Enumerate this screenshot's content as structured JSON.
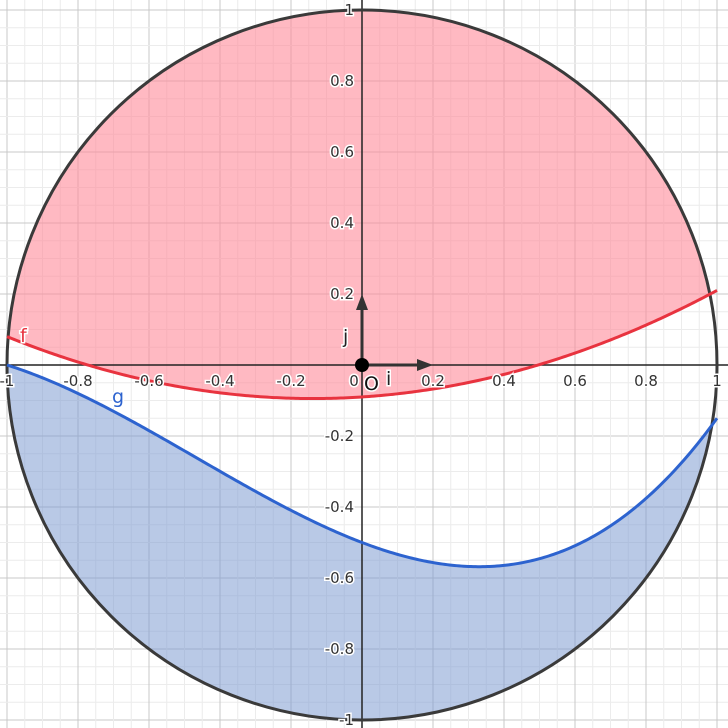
{
  "graph": {
    "x_ticks": [
      "-1",
      "-0.8",
      "-0.6",
      "-0.4",
      "-0.2",
      "0",
      "0.2",
      "0.4",
      "0.6",
      "0.8",
      "1"
    ],
    "y_ticks": [
      "1",
      "0.8",
      "0.6",
      "0.4",
      "0.2",
      "-0.2",
      "-0.4",
      "-0.6",
      "-0.8",
      "-1"
    ],
    "x_range": [
      -1.02,
      1.03
    ],
    "y_range": [
      -1.02,
      1.03
    ],
    "minor_grid_step": 0.05,
    "major_grid_step": 0.2,
    "circle": {
      "center": [
        0,
        0
      ],
      "radius": 1,
      "color": "#3a3a3a"
    },
    "curves": [
      {
        "label": "f",
        "color": "#e8333f",
        "fill": "#ff8a99",
        "region": "above curve inside circle",
        "approx_points": [
          [
            -1,
            0.08
          ],
          [
            -0.14,
            -0.095
          ],
          [
            0.52,
            0
          ],
          [
            1,
            0.21
          ]
        ]
      },
      {
        "label": "g",
        "color": "#2d63cf",
        "fill": "#7f9dd1",
        "region": "below curve inside circle",
        "approx_points": [
          [
            -1,
            0
          ],
          [
            -0.6,
            -0.18
          ],
          [
            0,
            -0.5
          ],
          [
            0.33,
            -0.57
          ],
          [
            1,
            -0.15
          ]
        ]
      }
    ],
    "vectors": [
      {
        "label": "i",
        "direction": [
          0.2,
          0
        ]
      },
      {
        "label": "j",
        "direction": [
          0,
          0.2
        ]
      }
    ],
    "origin_label": "O"
  }
}
